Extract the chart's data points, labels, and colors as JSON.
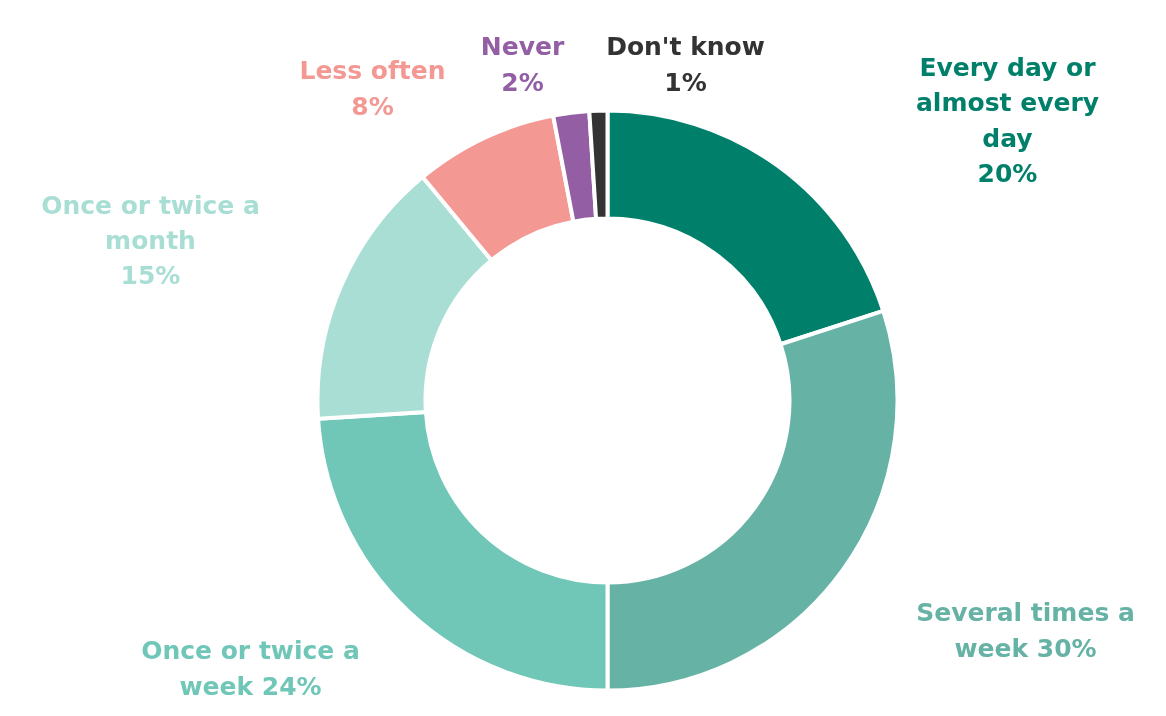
{
  "chart_data": {
    "type": "donut",
    "categories": [
      "Every day or almost every day",
      "Several times a week",
      "Once or twice a week",
      "Once or twice a month",
      "Less often",
      "Never",
      "Don't know"
    ],
    "values": [
      20,
      30,
      24,
      15,
      8,
      2,
      1
    ],
    "value_labels": [
      "20%",
      "30%",
      "24%",
      "15%",
      "8%",
      "2%",
      "1%"
    ],
    "colors": [
      "#00806a",
      "#66b3a6",
      "#70c7b7",
      "#a8ded4",
      "#f49894",
      "#935ea4",
      "#333333"
    ]
  }
}
